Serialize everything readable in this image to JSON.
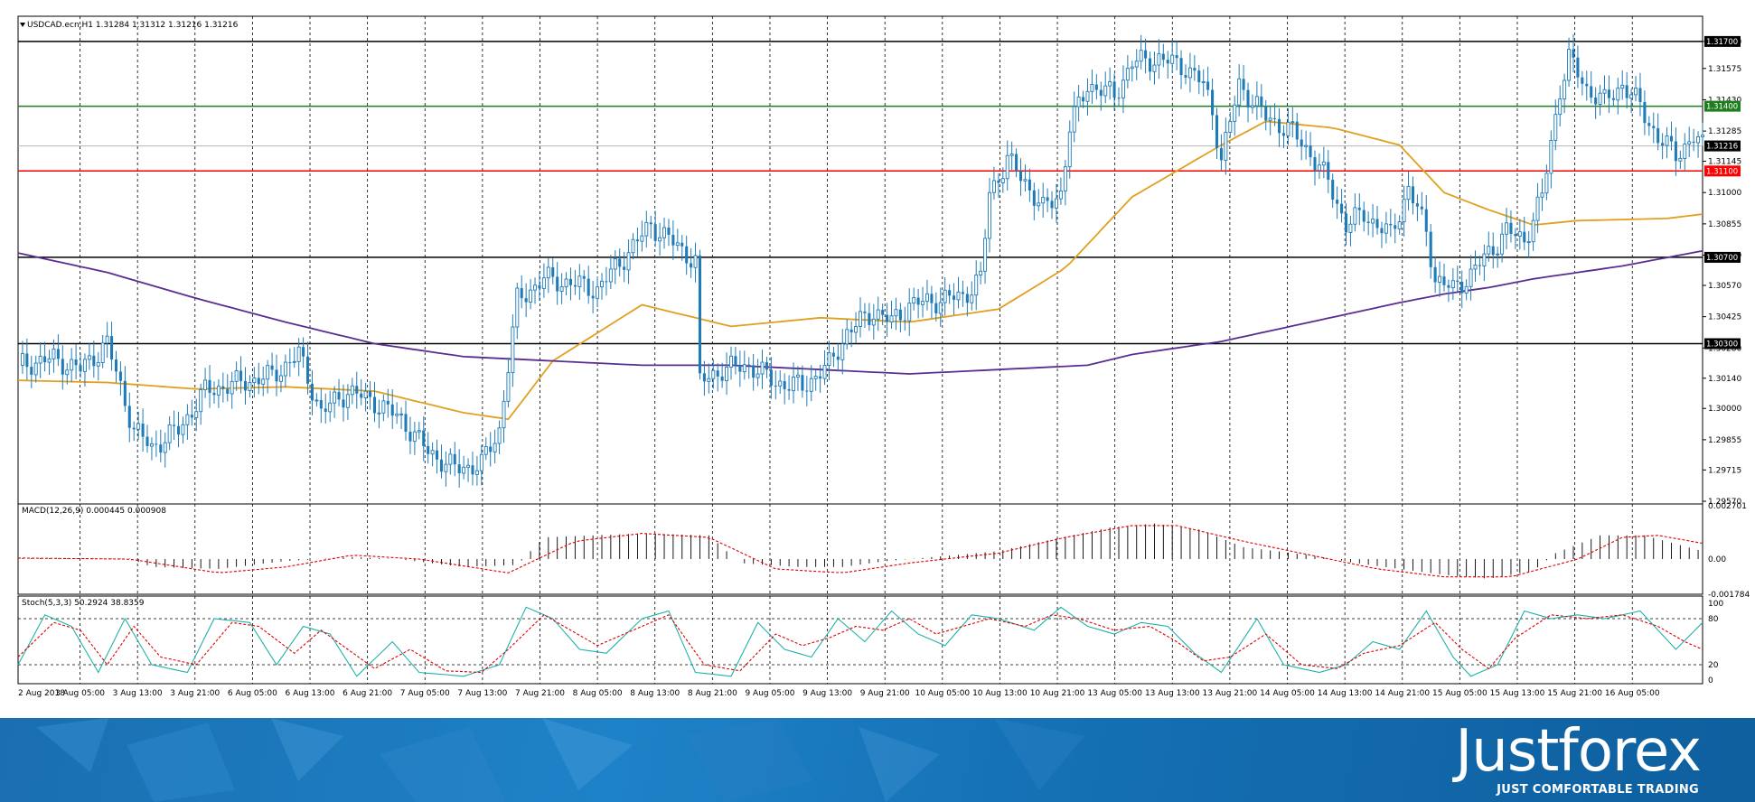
{
  "chart_data": {
    "type": "candlestick",
    "symbol_header": "USDCAD.ecn,H1",
    "header_ohlc": "1.31284 1.31312 1.31216 1.31216",
    "price_ylim": [
      1.2957,
      1.318
    ],
    "price_ticks": [
      "1.31700",
      "1.31575",
      "1.31430",
      "1.31285",
      "1.31145",
      "1.31000",
      "1.30855",
      "1.30710",
      "1.30570",
      "1.30425",
      "1.30280",
      "1.30140",
      "1.30000",
      "1.29855",
      "1.29715",
      "1.29570"
    ],
    "horizontal_levels": [
      {
        "value": 1.317,
        "label": "1.31700",
        "color": "#000000"
      },
      {
        "value": 1.314,
        "label": "1.31400",
        "color": "#1e7d1e"
      },
      {
        "value": 1.311,
        "label": "1.31100",
        "color": "#ff0000"
      },
      {
        "value": 1.307,
        "label": "1.30700",
        "color": "#000000"
      },
      {
        "value": 1.303,
        "label": "1.30300",
        "color": "#000000"
      }
    ],
    "current_price": {
      "value": 1.31216,
      "label": "1.31216"
    },
    "candle_color": "#1f7bb8",
    "close_path": [
      [
        0,
        1.302
      ],
      [
        8,
        1.3023
      ],
      [
        14,
        1.3018
      ],
      [
        20,
        1.303
      ],
      [
        26,
        1.299
      ],
      [
        30,
        1.2982
      ],
      [
        36,
        1.299
      ],
      [
        42,
        1.3008
      ],
      [
        50,
        1.3012
      ],
      [
        57,
        1.3015
      ],
      [
        63,
        1.3025
      ],
      [
        68,
        1.2998
      ],
      [
        74,
        1.3008
      ],
      [
        80,
        1.3003
      ],
      [
        86,
        1.2995
      ],
      [
        92,
        1.298
      ],
      [
        98,
        1.2972
      ],
      [
        104,
        1.2974
      ],
      [
        108,
        1.299
      ],
      [
        112,
        1.305
      ],
      [
        118,
        1.306
      ],
      [
        124,
        1.3058
      ],
      [
        130,
        1.3055
      ],
      [
        136,
        1.307
      ],
      [
        142,
        1.3085
      ],
      [
        148,
        1.3075
      ],
      [
        152,
        1.3068
      ],
      [
        153,
        1.3012
      ],
      [
        158,
        1.3018
      ],
      [
        164,
        1.302
      ],
      [
        170,
        1.3012
      ],
      [
        176,
        1.301
      ],
      [
        182,
        1.302
      ],
      [
        186,
        1.3035
      ],
      [
        192,
        1.3045
      ],
      [
        196,
        1.304
      ],
      [
        200,
        1.3048
      ],
      [
        206,
        1.305
      ],
      [
        212,
        1.3052
      ],
      [
        216,
        1.306
      ],
      [
        218,
        1.31
      ],
      [
        222,
        1.3115
      ],
      [
        226,
        1.3105
      ],
      [
        230,
        1.3092
      ],
      [
        234,
        1.31
      ],
      [
        236,
        1.313
      ],
      [
        240,
        1.315
      ],
      [
        246,
        1.3145
      ],
      [
        250,
        1.316
      ],
      [
        256,
        1.3162
      ],
      [
        262,
        1.3158
      ],
      [
        266,
        1.315
      ],
      [
        268,
        1.3138
      ],
      [
        270,
        1.3115
      ],
      [
        274,
        1.315
      ],
      [
        280,
        1.3135
      ],
      [
        286,
        1.3128
      ],
      [
        290,
        1.3118
      ],
      [
        294,
        1.3105
      ],
      [
        298,
        1.3085
      ],
      [
        302,
        1.309
      ],
      [
        308,
        1.308
      ],
      [
        312,
        1.3102
      ],
      [
        316,
        1.3082
      ],
      [
        318,
        1.306
      ],
      [
        322,
        1.3055
      ],
      [
        326,
        1.3062
      ],
      [
        330,
        1.3072
      ],
      [
        334,
        1.3082
      ],
      [
        338,
        1.3078
      ],
      [
        342,
        1.3098
      ],
      [
        346,
        1.3148
      ],
      [
        348,
        1.3162
      ],
      [
        352,
        1.3148
      ],
      [
        356,
        1.3142
      ],
      [
        360,
        1.315
      ],
      [
        364,
        1.314
      ],
      [
        368,
        1.3125
      ],
      [
        372,
        1.3118
      ],
      [
        376,
        1.3125
      ],
      [
        378,
        1.31216
      ]
    ],
    "sma_fast_path": [
      [
        0,
        1.3013
      ],
      [
        20,
        1.3012
      ],
      [
        40,
        1.3009
      ],
      [
        60,
        1.301
      ],
      [
        80,
        1.3008
      ],
      [
        100,
        1.2998
      ],
      [
        110,
        1.2995
      ],
      [
        120,
        1.3022
      ],
      [
        140,
        1.3048
      ],
      [
        160,
        1.3038
      ],
      [
        180,
        1.3042
      ],
      [
        200,
        1.304
      ],
      [
        220,
        1.3046
      ],
      [
        235,
        1.3065
      ],
      [
        250,
        1.3098
      ],
      [
        270,
        1.3122
      ],
      [
        280,
        1.3133
      ],
      [
        295,
        1.313
      ],
      [
        310,
        1.3122
      ],
      [
        320,
        1.31
      ],
      [
        330,
        1.3092
      ],
      [
        340,
        1.3085
      ],
      [
        350,
        1.3087
      ],
      [
        370,
        1.3088
      ],
      [
        378,
        1.309
      ]
    ],
    "sma_slow_path": [
      [
        0,
        1.3072
      ],
      [
        20,
        1.3063
      ],
      [
        40,
        1.3051
      ],
      [
        60,
        1.304
      ],
      [
        80,
        1.303
      ],
      [
        100,
        1.3024
      ],
      [
        120,
        1.3022
      ],
      [
        140,
        1.302
      ],
      [
        160,
        1.302
      ],
      [
        180,
        1.3018
      ],
      [
        200,
        1.3016
      ],
      [
        220,
        1.3018
      ],
      [
        240,
        1.302
      ],
      [
        250,
        1.3025
      ],
      [
        270,
        1.3031
      ],
      [
        290,
        1.304
      ],
      [
        310,
        1.3049
      ],
      [
        320,
        1.3053
      ],
      [
        330,
        1.3056
      ],
      [
        340,
        1.306
      ],
      [
        360,
        1.3066
      ],
      [
        378,
        1.3073
      ]
    ],
    "sma_fast_color": "#e0a020",
    "sma_slow_color": "#5a2d91",
    "macd": {
      "label": "MACD(12,26,9) 0.000445 0.000908",
      "ticks": [
        "0.002701",
        "0.00",
        "-0.001784"
      ],
      "ylim": [
        -0.001784,
        0.002701
      ],
      "hist_path": [
        [
          0,
          5e-05
        ],
        [
          25,
          2e-05
        ],
        [
          30,
          -0.0004
        ],
        [
          45,
          -0.0005
        ],
        [
          60,
          -0.0001
        ],
        [
          75,
          0.0001
        ],
        [
          85,
          0.0
        ],
        [
          100,
          -0.0004
        ],
        [
          112,
          -0.0003
        ],
        [
          118,
          0.0011
        ],
        [
          140,
          0.0013
        ],
        [
          155,
          0.0012
        ],
        [
          162,
          -0.0002
        ],
        [
          175,
          -0.0004
        ],
        [
          185,
          -0.0004
        ],
        [
          195,
          -0.0001
        ],
        [
          210,
          0.0002
        ],
        [
          220,
          0.0004
        ],
        [
          230,
          0.0009
        ],
        [
          245,
          0.0016
        ],
        [
          255,
          0.0018
        ],
        [
          265,
          0.0015
        ],
        [
          275,
          0.0006
        ],
        [
          290,
          0.0002
        ],
        [
          300,
          -0.0002
        ],
        [
          320,
          -0.0008
        ],
        [
          330,
          -0.001
        ],
        [
          340,
          -0.0006
        ],
        [
          345,
          0.0003
        ],
        [
          355,
          0.0012
        ],
        [
          365,
          0.0012
        ],
        [
          378,
          0.0004
        ]
      ],
      "signal_path": [
        [
          0,
          5e-05
        ],
        [
          25,
          0.0
        ],
        [
          45,
          -0.0007
        ],
        [
          60,
          -0.0004
        ],
        [
          75,
          0.0002
        ],
        [
          90,
          0.0
        ],
        [
          110,
          -0.0007
        ],
        [
          125,
          0.0009
        ],
        [
          140,
          0.0013
        ],
        [
          155,
          0.0011
        ],
        [
          170,
          -0.0005
        ],
        [
          185,
          -0.0007
        ],
        [
          200,
          -0.0002
        ],
        [
          220,
          0.0003
        ],
        [
          235,
          0.0011
        ],
        [
          250,
          0.0017
        ],
        [
          260,
          0.0017
        ],
        [
          275,
          0.0009
        ],
        [
          290,
          0.0002
        ],
        [
          305,
          -0.0005
        ],
        [
          320,
          -0.0009
        ],
        [
          335,
          -0.0009
        ],
        [
          350,
          0.0
        ],
        [
          360,
          0.0011
        ],
        [
          368,
          0.0012
        ],
        [
          378,
          0.0008
        ]
      ]
    },
    "stoch": {
      "label": "Stoch(5,3,3) 50.2924 38.8359",
      "ticks": [
        "100",
        "80",
        "20",
        "0"
      ],
      "ylim": [
        0,
        100
      ],
      "k_path": [
        [
          0,
          20
        ],
        [
          6,
          85
        ],
        [
          12,
          70
        ],
        [
          18,
          10
        ],
        [
          24,
          80
        ],
        [
          30,
          20
        ],
        [
          38,
          10
        ],
        [
          44,
          80
        ],
        [
          52,
          75
        ],
        [
          58,
          20
        ],
        [
          64,
          70
        ],
        [
          70,
          60
        ],
        [
          76,
          5
        ],
        [
          84,
          50
        ],
        [
          90,
          10
        ],
        [
          100,
          5
        ],
        [
          108,
          20
        ],
        [
          114,
          95
        ],
        [
          120,
          80
        ],
        [
          126,
          40
        ],
        [
          132,
          35
        ],
        [
          140,
          80
        ],
        [
          146,
          90
        ],
        [
          152,
          10
        ],
        [
          160,
          5
        ],
        [
          166,
          75
        ],
        [
          172,
          40
        ],
        [
          178,
          30
        ],
        [
          184,
          80
        ],
        [
          190,
          50
        ],
        [
          196,
          90
        ],
        [
          202,
          60
        ],
        [
          208,
          45
        ],
        [
          214,
          85
        ],
        [
          220,
          80
        ],
        [
          228,
          65
        ],
        [
          234,
          95
        ],
        [
          240,
          70
        ],
        [
          246,
          60
        ],
        [
          252,
          75
        ],
        [
          258,
          70
        ],
        [
          264,
          35
        ],
        [
          270,
          10
        ],
        [
          278,
          80
        ],
        [
          284,
          20
        ],
        [
          292,
          10
        ],
        [
          298,
          20
        ],
        [
          304,
          50
        ],
        [
          310,
          40
        ],
        [
          316,
          90
        ],
        [
          322,
          30
        ],
        [
          326,
          5
        ],
        [
          332,
          20
        ],
        [
          338,
          90
        ],
        [
          344,
          80
        ],
        [
          350,
          85
        ],
        [
          356,
          80
        ],
        [
          364,
          90
        ],
        [
          372,
          40
        ],
        [
          378,
          75
        ]
      ],
      "d_path": [
        [
          0,
          30
        ],
        [
          8,
          75
        ],
        [
          14,
          65
        ],
        [
          20,
          20
        ],
        [
          26,
          70
        ],
        [
          32,
          30
        ],
        [
          40,
          20
        ],
        [
          48,
          75
        ],
        [
          54,
          70
        ],
        [
          62,
          35
        ],
        [
          68,
          65
        ],
        [
          74,
          40
        ],
        [
          80,
          15
        ],
        [
          88,
          40
        ],
        [
          96,
          12
        ],
        [
          104,
          10
        ],
        [
          110,
          40
        ],
        [
          118,
          85
        ],
        [
          124,
          65
        ],
        [
          130,
          45
        ],
        [
          138,
          65
        ],
        [
          146,
          85
        ],
        [
          154,
          20
        ],
        [
          162,
          12
        ],
        [
          170,
          60
        ],
        [
          176,
          45
        ],
        [
          182,
          55
        ],
        [
          188,
          70
        ],
        [
          194,
          65
        ],
        [
          200,
          80
        ],
        [
          206,
          60
        ],
        [
          212,
          70
        ],
        [
          218,
          80
        ],
        [
          226,
          70
        ],
        [
          232,
          85
        ],
        [
          238,
          80
        ],
        [
          246,
          65
        ],
        [
          254,
          70
        ],
        [
          260,
          50
        ],
        [
          266,
          25
        ],
        [
          272,
          30
        ],
        [
          280,
          60
        ],
        [
          288,
          20
        ],
        [
          296,
          15
        ],
        [
          302,
          35
        ],
        [
          310,
          45
        ],
        [
          318,
          75
        ],
        [
          324,
          40
        ],
        [
          330,
          15
        ],
        [
          336,
          55
        ],
        [
          344,
          85
        ],
        [
          352,
          80
        ],
        [
          360,
          85
        ],
        [
          368,
          70
        ],
        [
          374,
          50
        ],
        [
          378,
          40
        ]
      ]
    },
    "x_labels": [
      "2 Aug 2018",
      "3 Aug 05:00",
      "3 Aug 13:00",
      "3 Aug 21:00",
      "6 Aug 05:00",
      "6 Aug 13:00",
      "6 Aug 21:00",
      "7 Aug 05:00",
      "7 Aug 13:00",
      "7 Aug 21:00",
      "8 Aug 05:00",
      "8 Aug 13:00",
      "8 Aug 21:00",
      "9 Aug 05:00",
      "9 Aug 13:00",
      "9 Aug 21:00",
      "10 Aug 05:00",
      "10 Aug 13:00",
      "10 Aug 21:00",
      "13 Aug 05:00",
      "13 Aug 13:00",
      "13 Aug 21:00",
      "14 Aug 05:00",
      "14 Aug 13:00",
      "14 Aug 21:00",
      "15 Aug 05:00",
      "15 Aug 13:00",
      "15 Aug 21:00",
      "16 Aug 05:00"
    ]
  },
  "branding": {
    "logo_text": "Justforex",
    "tagline": "JUST COMFORTABLE TRADING"
  }
}
